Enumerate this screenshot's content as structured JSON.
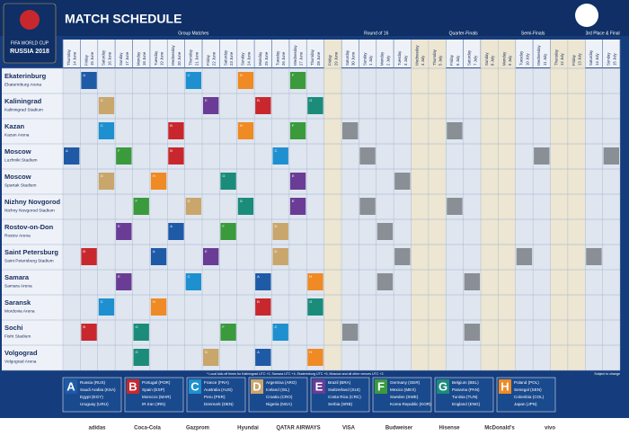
{
  "header": {
    "brand": "FIFA WORLD CUP",
    "edition": "RUSSIA 2018",
    "title": "MATCH SCHEDULE"
  },
  "days": [
    {
      "weekday": "Thursday",
      "date": "14 June"
    },
    {
      "weekday": "Friday",
      "date": "15 June"
    },
    {
      "weekday": "Saturday",
      "date": "16 June"
    },
    {
      "weekday": "Sunday",
      "date": "17 June"
    },
    {
      "weekday": "Monday",
      "date": "18 June"
    },
    {
      "weekday": "Tuesday",
      "date": "19 June"
    },
    {
      "weekday": "Wednesday",
      "date": "20 June"
    },
    {
      "weekday": "Thursday",
      "date": "21 June"
    },
    {
      "weekday": "Friday",
      "date": "22 June"
    },
    {
      "weekday": "Saturday",
      "date": "23 June"
    },
    {
      "weekday": "Sunday",
      "date": "24 June"
    },
    {
      "weekday": "Monday",
      "date": "25 June"
    },
    {
      "weekday": "Tuesday",
      "date": "26 June"
    },
    {
      "weekday": "Wednesday",
      "date": "27 June"
    },
    {
      "weekday": "Thursday",
      "date": "28 June"
    },
    {
      "weekday": "Friday",
      "date": "29 June"
    },
    {
      "weekday": "Saturday",
      "date": "30 June"
    },
    {
      "weekday": "Sunday",
      "date": "1 July"
    },
    {
      "weekday": "Monday",
      "date": "2 July"
    },
    {
      "weekday": "Tuesday",
      "date": "3 July"
    },
    {
      "weekday": "Wednesday",
      "date": "4 July"
    },
    {
      "weekday": "Thursday",
      "date": "5 July"
    },
    {
      "weekday": "Friday",
      "date": "6 July"
    },
    {
      "weekday": "Saturday",
      "date": "7 July"
    },
    {
      "weekday": "Sunday",
      "date": "8 July"
    },
    {
      "weekday": "Monday",
      "date": "9 July"
    },
    {
      "weekday": "Tuesday",
      "date": "10 July"
    },
    {
      "weekday": "Wednesday",
      "date": "11 July"
    },
    {
      "weekday": "Thursday",
      "date": "12 July"
    },
    {
      "weekday": "Friday",
      "date": "13 July"
    },
    {
      "weekday": "Saturday",
      "date": "14 July"
    },
    {
      "weekday": "Sunday",
      "date": "15 July"
    }
  ],
  "stages": [
    {
      "name": "Group Matches",
      "first": 0,
      "last": 14
    },
    {
      "name": "Round of 16",
      "first": 16,
      "last": 19
    },
    {
      "name": "Quarter-Finals",
      "first": 22,
      "last": 23
    },
    {
      "name": "Semi-Finals",
      "first": 26,
      "last": 27
    },
    {
      "name": "3rd Place & Final",
      "first": 30,
      "last": 31
    }
  ],
  "rest": [
    {
      "label": "REST DAY",
      "first": 15,
      "last": 15
    },
    {
      "label": "REST DAYS",
      "first": 20,
      "last": 21
    },
    {
      "label": "REST DAYS",
      "first": 24,
      "last": 25
    },
    {
      "label": "REST DAYS",
      "first": 28,
      "last": 29
    }
  ],
  "venues": [
    {
      "city": "Ekaterinburg",
      "stadium": "Ekaterinburg Arena",
      "matches": [
        {
          "day": 1,
          "group": "A"
        },
        {
          "day": 7,
          "group": "C"
        },
        {
          "day": 10,
          "group": "H"
        },
        {
          "day": 13,
          "group": "F"
        }
      ]
    },
    {
      "city": "Kaliningrad",
      "stadium": "Kaliningrad Stadium",
      "matches": [
        {
          "day": 2,
          "group": "D"
        },
        {
          "day": 8,
          "group": "E"
        },
        {
          "day": 11,
          "group": "B"
        },
        {
          "day": 14,
          "group": "G"
        }
      ]
    },
    {
      "city": "Kazan",
      "stadium": "Kazan Arena",
      "matches": [
        {
          "day": 2,
          "group": "C"
        },
        {
          "day": 6,
          "group": "B"
        },
        {
          "day": 10,
          "group": "H"
        },
        {
          "day": 13,
          "group": "F"
        },
        {
          "day": 16
        },
        {
          "day": 22
        }
      ]
    },
    {
      "city": "Moscow",
      "stadium": "Luzhniki Stadium",
      "matches": [
        {
          "day": 0,
          "group": "A"
        },
        {
          "day": 3,
          "group": "F"
        },
        {
          "day": 6,
          "group": "B"
        },
        {
          "day": 12,
          "group": "C"
        },
        {
          "day": 17
        },
        {
          "day": 27
        },
        {
          "day": 31
        }
      ]
    },
    {
      "city": "Moscow",
      "stadium": "Spartak Stadium",
      "matches": [
        {
          "day": 2,
          "group": "D"
        },
        {
          "day": 5,
          "group": "H"
        },
        {
          "day": 9,
          "group": "G"
        },
        {
          "day": 13,
          "group": "E"
        },
        {
          "day": 19
        }
      ]
    },
    {
      "city": "Nizhny Novgorod",
      "stadium": "Nizhny Novgorod Stadium",
      "matches": [
        {
          "day": 4,
          "group": "F"
        },
        {
          "day": 7,
          "group": "D"
        },
        {
          "day": 10,
          "group": "G"
        },
        {
          "day": 13,
          "group": "E"
        },
        {
          "day": 17
        },
        {
          "day": 22
        }
      ]
    },
    {
      "city": "Rostov-on-Don",
      "stadium": "Rostov Arena",
      "matches": [
        {
          "day": 3,
          "group": "E"
        },
        {
          "day": 6,
          "group": "A"
        },
        {
          "day": 9,
          "group": "F"
        },
        {
          "day": 12,
          "group": "D"
        },
        {
          "day": 18
        }
      ]
    },
    {
      "city": "Saint Petersburg",
      "stadium": "Saint Petersburg Stadium",
      "matches": [
        {
          "day": 1,
          "group": "B"
        },
        {
          "day": 5,
          "group": "A"
        },
        {
          "day": 8,
          "group": "E"
        },
        {
          "day": 12,
          "group": "D"
        },
        {
          "day": 19
        },
        {
          "day": 26
        },
        {
          "day": 30
        }
      ]
    },
    {
      "city": "Samara",
      "stadium": "Samara Arena",
      "matches": [
        {
          "day": 3,
          "group": "E"
        },
        {
          "day": 7,
          "group": "C"
        },
        {
          "day": 11,
          "group": "A"
        },
        {
          "day": 14,
          "group": "H"
        },
        {
          "day": 18
        },
        {
          "day": 23
        }
      ]
    },
    {
      "city": "Saransk",
      "stadium": "Mordovia Arena",
      "matches": [
        {
          "day": 2,
          "group": "C"
        },
        {
          "day": 5,
          "group": "H"
        },
        {
          "day": 11,
          "group": "B"
        },
        {
          "day": 14,
          "group": "G"
        }
      ]
    },
    {
      "city": "Sochi",
      "stadium": "Fisht Stadium",
      "matches": [
        {
          "day": 1,
          "group": "B"
        },
        {
          "day": 4,
          "group": "G"
        },
        {
          "day": 9,
          "group": "F"
        },
        {
          "day": 12,
          "group": "C"
        },
        {
          "day": 16
        },
        {
          "day": 23
        }
      ]
    },
    {
      "city": "Volgograd",
      "stadium": "Volgograd Arena",
      "matches": [
        {
          "day": 4,
          "group": "G"
        },
        {
          "day": 8,
          "group": "D"
        },
        {
          "day": 11,
          "group": "A"
        },
        {
          "day": 14,
          "group": "H"
        }
      ]
    }
  ],
  "groups": [
    {
      "letter": "A",
      "color": "#1f5aa6",
      "teams": [
        "Russia (RUS)",
        "Saudi Arabia (KSA)",
        "Egypt (EGY)",
        "Uruguay (URU)"
      ]
    },
    {
      "letter": "B",
      "color": "#c8282d",
      "teams": [
        "Portugal (POR)",
        "Spain (ESP)",
        "Morocco (MAR)",
        "IR Iran (IRN)"
      ]
    },
    {
      "letter": "C",
      "color": "#1e90d0",
      "teams": [
        "France (FRA)",
        "Australia (AUS)",
        "Peru (PER)",
        "Denmark (DEN)"
      ]
    },
    {
      "letter": "D",
      "color": "#c9a66b",
      "teams": [
        "Argentina (ARG)",
        "Iceland (ISL)",
        "Croatia (CRO)",
        "Nigeria (NGA)"
      ]
    },
    {
      "letter": "E",
      "color": "#6a3c96",
      "teams": [
        "Brazil (BRA)",
        "Switzerland (SUI)",
        "Costa Rica (CRC)",
        "Serbia (SRB)"
      ]
    },
    {
      "letter": "F",
      "color": "#3a9a3c",
      "teams": [
        "Germany (GER)",
        "Mexico (MEX)",
        "Sweden (SWE)",
        "Korea Republic (KOR)"
      ]
    },
    {
      "letter": "G",
      "color": "#1b8c7a",
      "teams": [
        "Belgium (BEL)",
        "Panama (PAN)",
        "Tunisia (TUN)",
        "England (ENG)"
      ]
    },
    {
      "letter": "H",
      "color": "#f08a24",
      "teams": [
        "Poland (POL)",
        "Senegal (SEN)",
        "Colombia (COL)",
        "Japan (JPN)"
      ]
    }
  ],
  "notes": {
    "footnote": "* Local kick-off times for Kaliningrad UTC +2, Samara UTC +4, Ekaterinburg UTC +5, Moscow and all other venues UTC +3",
    "disclaimer": "Subject to change"
  },
  "sponsors": [
    "adidas",
    "Coca-Cola",
    "Gazprom",
    "Hyundai",
    "QATAR AIRWAYS",
    "VISA",
    "Budweiser",
    "Hisense",
    "McDonald's",
    "vivo"
  ]
}
